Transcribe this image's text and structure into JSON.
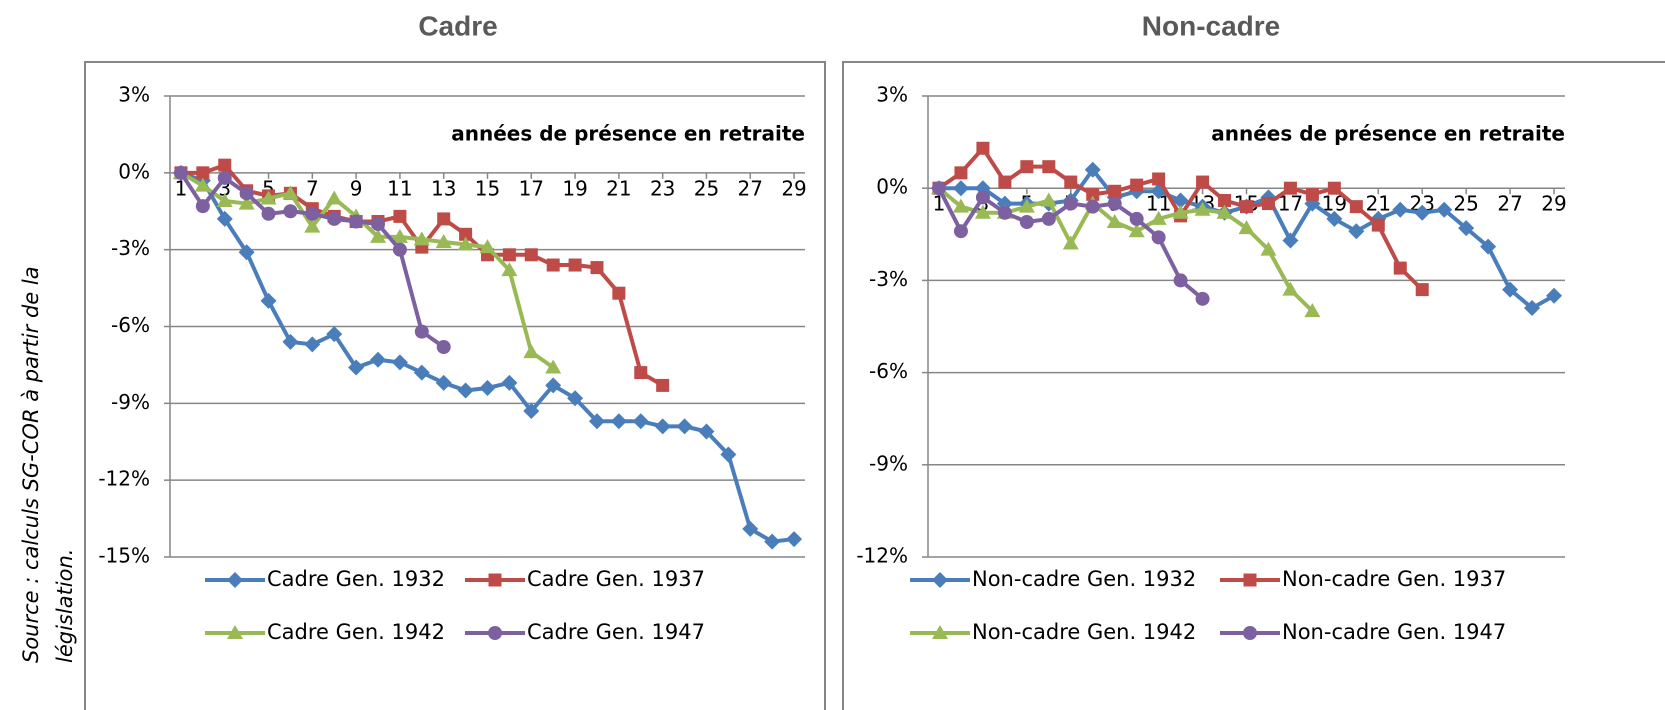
{
  "source": [
    "Source : calculs SG-COR à partir de la",
    "législation."
  ],
  "chart_data": [
    {
      "type": "line",
      "title": "Cadre",
      "x_label": "années de présence en retraite",
      "x": [
        1,
        2,
        3,
        4,
        5,
        6,
        7,
        8,
        9,
        10,
        11,
        12,
        13,
        14,
        15,
        16,
        17,
        18,
        19,
        20,
        21,
        22,
        23,
        24,
        25,
        26,
        27,
        28,
        29
      ],
      "xlim": [
        0.5,
        29.5
      ],
      "xticks": [
        1,
        3,
        5,
        7,
        9,
        11,
        13,
        15,
        17,
        19,
        21,
        23,
        25,
        27,
        29
      ],
      "ylim": [
        -15,
        3
      ],
      "yticks": [
        {
          "value": 3,
          "label": "3%"
        },
        {
          "value": 0,
          "label": "0%"
        },
        {
          "value": -3,
          "label": "-3%"
        },
        {
          "value": -6,
          "label": "-6%"
        },
        {
          "value": -9,
          "label": "-9%"
        },
        {
          "value": -12,
          "label": "-12%"
        },
        {
          "value": -15,
          "label": "-15%"
        }
      ],
      "grid": true,
      "series": [
        {
          "name": "Cadre Gen. 1932",
          "color": "#4a7ebb",
          "marker": "diamond",
          "values": [
            0,
            -0.3,
            -1.8,
            -3.1,
            -5.0,
            -6.6,
            -6.7,
            -6.3,
            -7.6,
            -7.3,
            -7.4,
            -7.8,
            -8.2,
            -8.5,
            -8.4,
            -8.2,
            -9.3,
            -8.3,
            -8.8,
            -9.7,
            -9.7,
            -9.7,
            -9.9,
            -9.9,
            -10.1,
            -11.0,
            -13.9,
            -14.4,
            -14.3
          ]
        },
        {
          "name": "Cadre Gen. 1937",
          "color": "#be4b48",
          "marker": "square",
          "values": [
            0,
            0,
            0.3,
            -0.7,
            -0.9,
            -0.8,
            -1.4,
            -1.7,
            -1.9,
            -1.9,
            -1.7,
            -2.9,
            -1.8,
            -2.4,
            -3.2,
            -3.2,
            -3.2,
            -3.6,
            -3.6,
            -3.7,
            -4.7,
            -7.8,
            -8.3,
            null,
            null,
            null,
            null,
            null,
            null
          ]
        },
        {
          "name": "Cadre Gen. 1942",
          "color": "#98b954",
          "marker": "triangle",
          "values": [
            0,
            -0.5,
            -1.1,
            -1.2,
            -1.0,
            -0.8,
            -2.1,
            -1.0,
            -1.7,
            -2.5,
            -2.5,
            -2.6,
            -2.7,
            -2.8,
            -2.9,
            -3.8,
            -7.0,
            -7.6,
            null,
            null,
            null,
            null,
            null,
            null,
            null,
            null,
            null,
            null,
            null
          ]
        },
        {
          "name": "Cadre Gen. 1947",
          "color": "#7d60a0",
          "marker": "circle",
          "values": [
            0,
            -1.3,
            -0.2,
            -0.8,
            -1.6,
            -1.5,
            -1.6,
            -1.8,
            -1.9,
            -2.0,
            -3.0,
            -6.2,
            -6.8,
            null,
            null,
            null,
            null,
            null,
            null,
            null,
            null,
            null,
            null,
            null,
            null,
            null,
            null,
            null,
            null
          ]
        }
      ]
    },
    {
      "type": "line",
      "title": "Non-cadre",
      "x_label": "années de présence en retraite",
      "x": [
        1,
        2,
        3,
        4,
        5,
        6,
        7,
        8,
        9,
        10,
        11,
        12,
        13,
        14,
        15,
        16,
        17,
        18,
        19,
        20,
        21,
        22,
        23,
        24,
        25,
        26,
        27,
        28,
        29
      ],
      "xlim": [
        0.5,
        29.5
      ],
      "xticks": [
        1,
        3,
        5,
        7,
        9,
        11,
        13,
        15,
        17,
        19,
        21,
        23,
        25,
        27,
        29
      ],
      "ylim": [
        -12,
        3
      ],
      "yticks": [
        {
          "value": 3,
          "label": "3%"
        },
        {
          "value": 0,
          "label": "0%"
        },
        {
          "value": -3,
          "label": "-3%"
        },
        {
          "value": -6,
          "label": "-6%"
        },
        {
          "value": -9,
          "label": "-9%"
        },
        {
          "value": -12,
          "label": "-12%"
        }
      ],
      "grid": true,
      "series": [
        {
          "name": "Non-cadre Gen. 1932",
          "color": "#4a7ebb",
          "marker": "diamond",
          "values": [
            0,
            0,
            0,
            -0.5,
            -0.5,
            -0.5,
            -0.4,
            0.6,
            -0.3,
            -0.1,
            -0.1,
            -0.4,
            -0.6,
            -0.8,
            -0.6,
            -0.3,
            -1.7,
            -0.5,
            -1.0,
            -1.4,
            -1.0,
            -0.7,
            -0.8,
            -0.7,
            -1.3,
            -1.9,
            -3.3,
            -3.9,
            -3.5
          ]
        },
        {
          "name": "Non-cadre Gen. 1937",
          "color": "#be4b48",
          "marker": "square",
          "values": [
            0,
            0.5,
            1.3,
            0.2,
            0.7,
            0.7,
            0.2,
            -0.2,
            -0.1,
            0.1,
            0.3,
            -0.9,
            0.2,
            -0.4,
            -0.6,
            -0.5,
            0,
            -0.2,
            0,
            -0.6,
            -1.2,
            -2.6,
            -3.3,
            null,
            null,
            null,
            null,
            null,
            null
          ]
        },
        {
          "name": "Non-cadre Gen. 1942",
          "color": "#98b954",
          "marker": "triangle",
          "values": [
            0,
            -0.6,
            -0.8,
            -0.8,
            -0.6,
            -0.4,
            -1.8,
            -0.5,
            -1.1,
            -1.4,
            -1.0,
            -0.8,
            -0.7,
            -0.8,
            -1.3,
            -2.0,
            -3.3,
            -4.0,
            null,
            null,
            null,
            null,
            null,
            null,
            null,
            null,
            null,
            null,
            null
          ]
        },
        {
          "name": "Non-cadre Gen. 1947",
          "color": "#7d60a0",
          "marker": "circle",
          "values": [
            0,
            -1.4,
            -0.3,
            -0.8,
            -1.1,
            -1.0,
            -0.5,
            -0.6,
            -0.5,
            -1.0,
            -1.6,
            -3.0,
            -3.6,
            null,
            null,
            null,
            null,
            null,
            null,
            null,
            null,
            null,
            null,
            null,
            null,
            null,
            null,
            null,
            null
          ]
        }
      ]
    }
  ]
}
